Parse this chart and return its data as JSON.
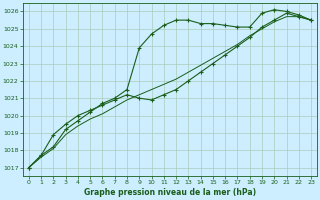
{
  "title": "Graphe pression niveau de la mer (hPa)",
  "bg_color": "#cceeff",
  "grid_color": "#aaccbb",
  "line_color": "#1a5e1a",
  "xlim": [
    -0.5,
    23.5
  ],
  "ylim": [
    1016.5,
    1026.5
  ],
  "yticks": [
    1017,
    1018,
    1019,
    1020,
    1021,
    1022,
    1023,
    1024,
    1025,
    1026
  ],
  "xticks": [
    0,
    1,
    2,
    3,
    4,
    5,
    6,
    7,
    8,
    9,
    10,
    11,
    12,
    13,
    14,
    15,
    16,
    17,
    18,
    19,
    20,
    21,
    22,
    23
  ],
  "series1_x": [
    0,
    1,
    2,
    3,
    4,
    5,
    6,
    7,
    8,
    9,
    10,
    11,
    12,
    13,
    14,
    15,
    16,
    17,
    18,
    19,
    20,
    21,
    22,
    23
  ],
  "series1_y": [
    1017.0,
    1017.7,
    1018.2,
    1019.2,
    1019.7,
    1020.2,
    1020.7,
    1021.0,
    1021.5,
    1023.9,
    1024.7,
    1025.2,
    1025.5,
    1025.5,
    1025.3,
    1025.3,
    1025.2,
    1025.1,
    1025.1,
    1025.9,
    1026.1,
    1026.0,
    1025.8,
    1025.5
  ],
  "series2_x": [
    0,
    1,
    2,
    3,
    4,
    5,
    6,
    7,
    8,
    9,
    10,
    11,
    12,
    13,
    14,
    15,
    16,
    17,
    18,
    19,
    20,
    21,
    22,
    23
  ],
  "series2_y": [
    1017.0,
    1017.7,
    1018.9,
    1019.5,
    1020.0,
    1020.3,
    1020.6,
    1020.9,
    1021.2,
    1021.0,
    1020.9,
    1021.2,
    1021.5,
    1022.0,
    1022.5,
    1023.0,
    1023.5,
    1024.0,
    1024.5,
    1025.1,
    1025.5,
    1025.9,
    1025.7,
    1025.5
  ],
  "series3_x": [
    0,
    1,
    2,
    3,
    4,
    5,
    6,
    7,
    8,
    9,
    10,
    11,
    12,
    13,
    14,
    15,
    16,
    17,
    18,
    19,
    20,
    21,
    22,
    23
  ],
  "series3_y": [
    1017.0,
    1017.6,
    1018.1,
    1018.9,
    1019.4,
    1019.8,
    1020.1,
    1020.5,
    1020.9,
    1021.2,
    1021.5,
    1021.8,
    1022.1,
    1022.5,
    1022.9,
    1023.3,
    1023.7,
    1024.1,
    1024.6,
    1025.0,
    1025.4,
    1025.7,
    1025.7,
    1025.5
  ]
}
